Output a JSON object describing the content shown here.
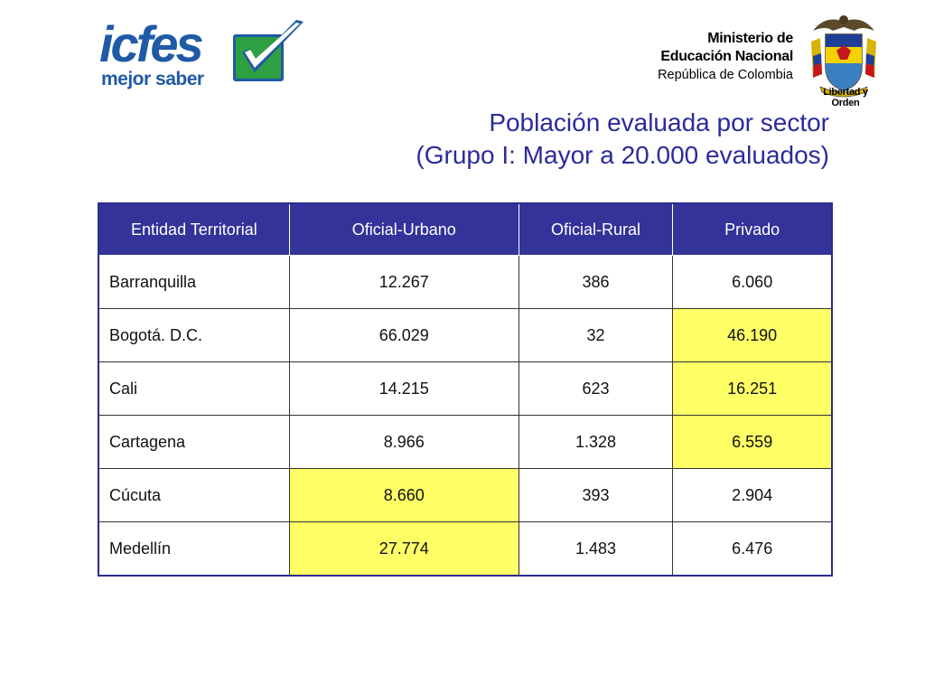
{
  "header": {
    "logo_word": "icfes",
    "logo_slogan": "mejor saber",
    "ministry_line1": "Ministerio de",
    "ministry_line2": "Educación Nacional",
    "ministry_line3": "República de Colombia",
    "coat_motto": "Libertad y Orden"
  },
  "title": {
    "line1": "Población evaluada por sector",
    "line2": "(Grupo I: Mayor a 20.000 evaluados)"
  },
  "colors": {
    "header_bg": "#333399",
    "highlight": "#ffff66",
    "title": "#2b2b9b",
    "logo_blue": "#1f5aa6",
    "logo_green": "#2e9f43"
  },
  "table": {
    "columns": [
      "Entidad Territorial",
      "Oficial-Urbano",
      "Oficial-Rural",
      "Privado"
    ],
    "rows": [
      {
        "cells": [
          "Barranquilla",
          "12.267",
          "386",
          "6.060"
        ],
        "highlight": [
          false,
          false,
          false,
          false
        ]
      },
      {
        "cells": [
          "Bogotá. D.C.",
          "66.029",
          "32",
          "46.190"
        ],
        "highlight": [
          false,
          false,
          false,
          true
        ]
      },
      {
        "cells": [
          "Cali",
          "14.215",
          "623",
          "16.251"
        ],
        "highlight": [
          false,
          false,
          false,
          true
        ]
      },
      {
        "cells": [
          "Cartagena",
          "8.966",
          "1.328",
          "6.559"
        ],
        "highlight": [
          false,
          false,
          false,
          true
        ]
      },
      {
        "cells": [
          "Cúcuta",
          "8.660",
          "393",
          "2.904"
        ],
        "highlight": [
          false,
          true,
          false,
          false
        ]
      },
      {
        "cells": [
          "Medellín",
          "27.774",
          "1.483",
          "6.476"
        ],
        "highlight": [
          false,
          true,
          false,
          false
        ]
      }
    ]
  }
}
